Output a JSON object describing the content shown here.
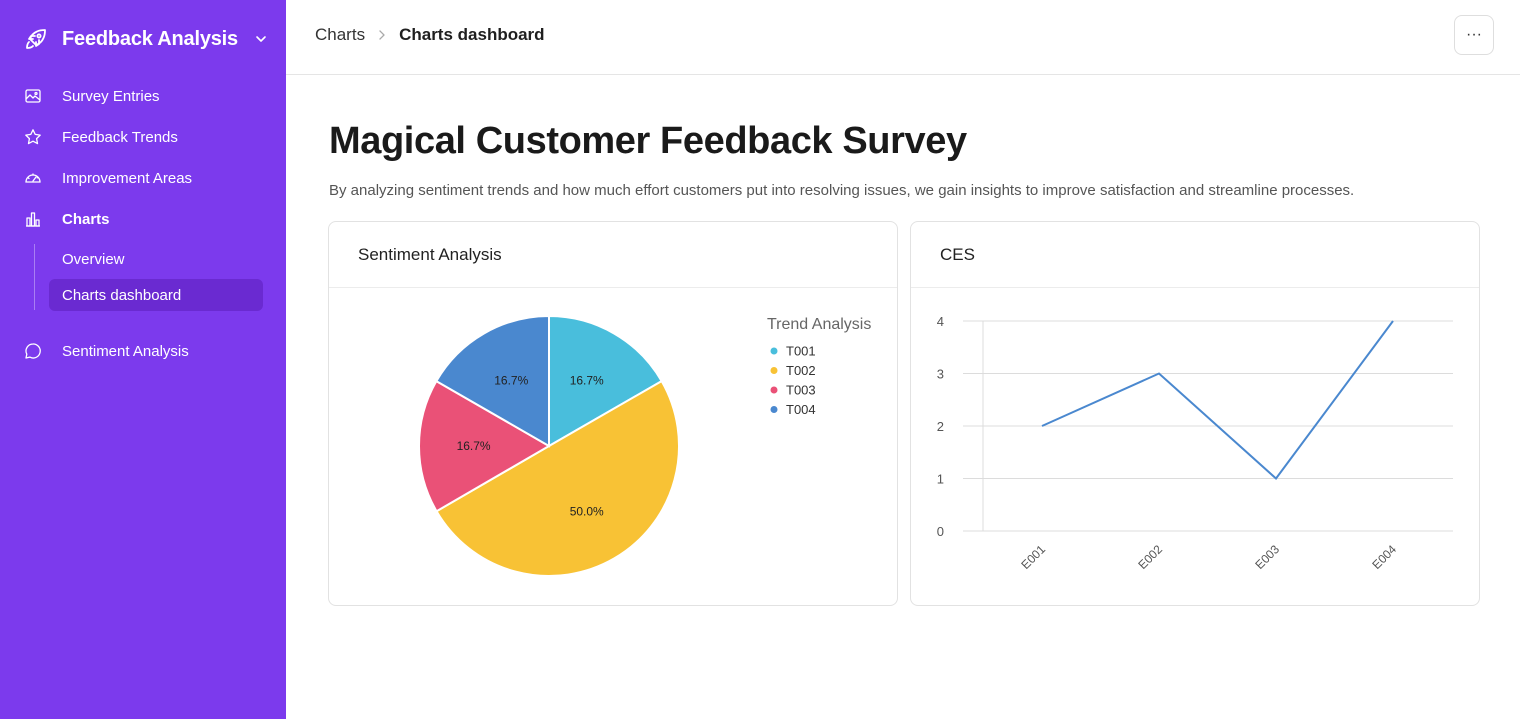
{
  "app": {
    "title": "Feedback Analysis"
  },
  "sidebar": {
    "items": [
      {
        "label": "Survey Entries",
        "icon": "image-icon"
      },
      {
        "label": "Feedback Trends",
        "icon": "star-icon"
      },
      {
        "label": "Improvement Areas",
        "icon": "gauge-icon"
      },
      {
        "label": "Charts",
        "icon": "bar-chart-icon"
      },
      {
        "label": "Sentiment Analysis",
        "icon": "chat-bubble-icon"
      }
    ],
    "charts_sub": [
      {
        "label": "Overview"
      },
      {
        "label": "Charts dashboard",
        "active": true
      }
    ]
  },
  "header": {
    "breadcrumb_parent": "Charts",
    "breadcrumb_current": "Charts dashboard",
    "more_label": "···"
  },
  "main": {
    "title": "Magical Customer Feedback Survey",
    "description": "By analyzing sentiment trends and how much effort customers put into resolving issues, we gain insights to improve satisfaction and streamline processes."
  },
  "cards": {
    "sentiment_title": "Sentiment Analysis",
    "ces_title": "CES"
  },
  "chart_data": [
    {
      "type": "pie",
      "title": "Sentiment Analysis",
      "legend_title": "Trend Analysis",
      "legend_position": "top-right",
      "categories": [
        "T001",
        "T002",
        "T003",
        "T004"
      ],
      "values": [
        16.7,
        50.0,
        16.7,
        16.7
      ],
      "labels": [
        "16.7%",
        "50.0%",
        "16.7%",
        "16.7%"
      ],
      "colors": [
        "#49bedc",
        "#f8c235",
        "#ea5177",
        "#4a88cf"
      ]
    },
    {
      "type": "line",
      "title": "CES",
      "categories": [
        "E001",
        "E002",
        "E003",
        "E004"
      ],
      "series": [
        {
          "values": [
            2,
            3,
            1,
            4
          ],
          "color": "#4a88cf"
        }
      ],
      "ylim": [
        0,
        4
      ],
      "yticks": [
        0,
        1,
        2,
        3,
        4
      ],
      "grid": true
    }
  ]
}
